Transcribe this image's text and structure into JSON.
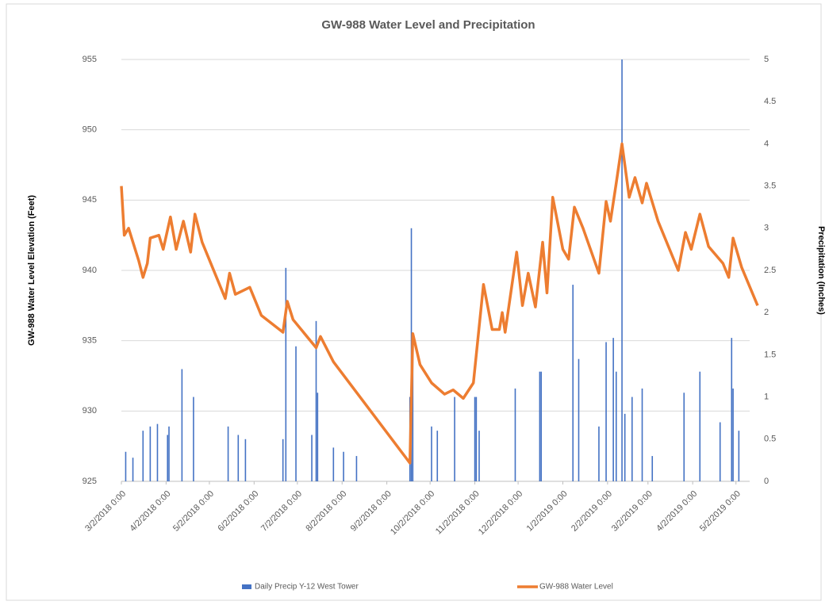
{
  "chart_data": {
    "type": "bar-line",
    "title": "GW-988 Water Level and Precipitation",
    "y_label": "GW-988 Water Level Elevation (Feet)",
    "y2_label": "Precipitation (Inches)",
    "xlim": [
      "2018-03-02",
      "2019-05-17"
    ],
    "xticks": [
      {
        "value": "2018-03-02",
        "label": "3/2/2018 0:00"
      },
      {
        "value": "2018-04-02",
        "label": "4/2/2018 0:00"
      },
      {
        "value": "2018-05-02",
        "label": "5/2/2018 0:00"
      },
      {
        "value": "2018-06-02",
        "label": "6/2/2018 0:00"
      },
      {
        "value": "2018-07-02",
        "label": "7/2/2018 0:00"
      },
      {
        "value": "2018-08-02",
        "label": "8/2/2018 0:00"
      },
      {
        "value": "2018-09-02",
        "label": "9/2/2018 0:00"
      },
      {
        "value": "2018-10-02",
        "label": "10/2/2018 0:00"
      },
      {
        "value": "2018-11-02",
        "label": "11/2/2018 0:00"
      },
      {
        "value": "2018-12-02",
        "label": "12/2/2018 0:00"
      },
      {
        "value": "2019-01-02",
        "label": "1/2/2019 0:00"
      },
      {
        "value": "2019-02-02",
        "label": "2/2/2019 0:00"
      },
      {
        "value": "2019-03-02",
        "label": "3/2/2019 0:00"
      },
      {
        "value": "2019-04-02",
        "label": "4/2/2019 0:00"
      },
      {
        "value": "2019-05-02",
        "label": "5/2/2019 0:00"
      }
    ],
    "ylim": [
      925,
      955
    ],
    "yticks": [
      925,
      930,
      935,
      940,
      945,
      950,
      955
    ],
    "y2lim": [
      0,
      5
    ],
    "y2ticks": [
      0,
      0.5,
      1,
      1.5,
      2,
      2.5,
      3,
      3.5,
      4,
      4.5,
      5
    ],
    "grid": true,
    "legend": "bottom",
    "series": [
      {
        "name": "Daily Precip Y-12 West Tower",
        "type": "bar",
        "axis": "y2",
        "color": "#4472c4",
        "x": [
          "2018-03-05",
          "2018-03-10",
          "2018-03-17",
          "2018-03-22",
          "2018-03-27",
          "2018-04-03",
          "2018-04-04",
          "2018-04-13",
          "2018-04-21",
          "2018-05-15",
          "2018-05-22",
          "2018-05-27",
          "2018-06-22",
          "2018-06-24",
          "2018-07-01",
          "2018-07-12",
          "2018-07-15",
          "2018-07-16",
          "2018-07-27",
          "2018-08-03",
          "2018-08-12",
          "2018-09-18",
          "2018-09-19",
          "2018-09-20",
          "2018-10-03",
          "2018-10-07",
          "2018-10-19",
          "2018-11-02",
          "2018-11-03",
          "2018-11-05",
          "2018-11-30",
          "2018-12-17",
          "2018-12-18",
          "2019-01-09",
          "2019-01-13",
          "2019-01-27",
          "2019-02-01",
          "2019-02-06",
          "2019-02-08",
          "2019-02-12",
          "2019-02-14",
          "2019-02-19",
          "2019-02-26",
          "2019-03-05",
          "2019-03-27",
          "2019-04-07",
          "2019-04-21",
          "2019-04-29",
          "2019-04-30",
          "2019-05-04"
        ],
        "values": [
          0.35,
          0.28,
          0.6,
          0.65,
          0.68,
          0.55,
          0.65,
          1.33,
          1.0,
          0.65,
          0.55,
          0.5,
          0.5,
          2.53,
          1.6,
          0.55,
          1.9,
          1.05,
          0.4,
          0.35,
          0.3,
          1.0,
          3.0,
          1.65,
          0.65,
          0.6,
          1.0,
          1.0,
          1.0,
          0.6,
          1.1,
          1.3,
          1.3,
          2.33,
          1.45,
          0.65,
          1.65,
          1.7,
          1.3,
          5.0,
          0.8,
          1.0,
          1.1,
          0.3,
          1.05,
          1.3,
          0.7,
          1.7,
          1.1,
          0.6
        ]
      },
      {
        "name": "GW-988 Water Level",
        "type": "line",
        "color": "#ed7d31",
        "x": [
          "2018-03-02",
          "2018-03-04",
          "2018-03-07",
          "2018-03-14",
          "2018-03-17",
          "2018-03-20",
          "2018-03-22",
          "2018-03-28",
          "2018-03-31",
          "2018-04-05",
          "2018-04-09",
          "2018-04-14",
          "2018-04-19",
          "2018-04-22",
          "2018-04-27",
          "2018-05-13",
          "2018-05-16",
          "2018-05-20",
          "2018-05-30",
          "2018-06-07",
          "2018-06-22",
          "2018-06-25",
          "2018-06-29",
          "2018-07-15",
          "2018-07-18",
          "2018-07-27",
          "2018-09-18",
          "2018-09-20",
          "2018-09-25",
          "2018-10-03",
          "2018-10-12",
          "2018-10-18",
          "2018-10-25",
          "2018-11-01",
          "2018-11-08",
          "2018-11-14",
          "2018-11-19",
          "2018-11-21",
          "2018-11-23",
          "2018-12-01",
          "2018-12-05",
          "2018-12-09",
          "2018-12-14",
          "2018-12-19",
          "2018-12-22",
          "2018-12-26",
          "2019-01-02",
          "2019-01-06",
          "2019-01-10",
          "2019-01-16",
          "2019-01-27",
          "2019-02-01",
          "2019-02-04",
          "2019-02-08",
          "2019-02-12",
          "2019-02-17",
          "2019-02-21",
          "2019-02-26",
          "2019-03-01",
          "2019-03-09",
          "2019-03-23",
          "2019-03-28",
          "2019-04-01",
          "2019-04-07",
          "2019-04-13",
          "2019-04-23",
          "2019-04-27",
          "2019-04-30",
          "2019-05-06",
          "2019-05-17"
        ],
        "values": [
          946,
          942.5,
          943,
          940.7,
          939.5,
          940.5,
          942.3,
          942.5,
          941.5,
          943.8,
          941.5,
          943.5,
          941.3,
          944,
          942,
          938,
          939.8,
          938.3,
          938.8,
          936.8,
          935.6,
          937.8,
          936.5,
          934.5,
          935.3,
          933.5,
          926.3,
          935.5,
          933.3,
          932,
          931.2,
          931.5,
          930.9,
          932,
          939,
          935.8,
          935.8,
          937,
          935.6,
          941.3,
          937.5,
          939.8,
          937.4,
          942,
          938.4,
          945.2,
          941.5,
          940.8,
          944.5,
          943,
          939.8,
          944.9,
          943.5,
          946.2,
          949,
          945.2,
          946.6,
          944.8,
          946.2,
          943.5,
          940,
          942.7,
          941.5,
          944,
          941.7,
          940.5,
          939.5,
          942.3,
          940.2,
          937.5
        ]
      }
    ]
  }
}
